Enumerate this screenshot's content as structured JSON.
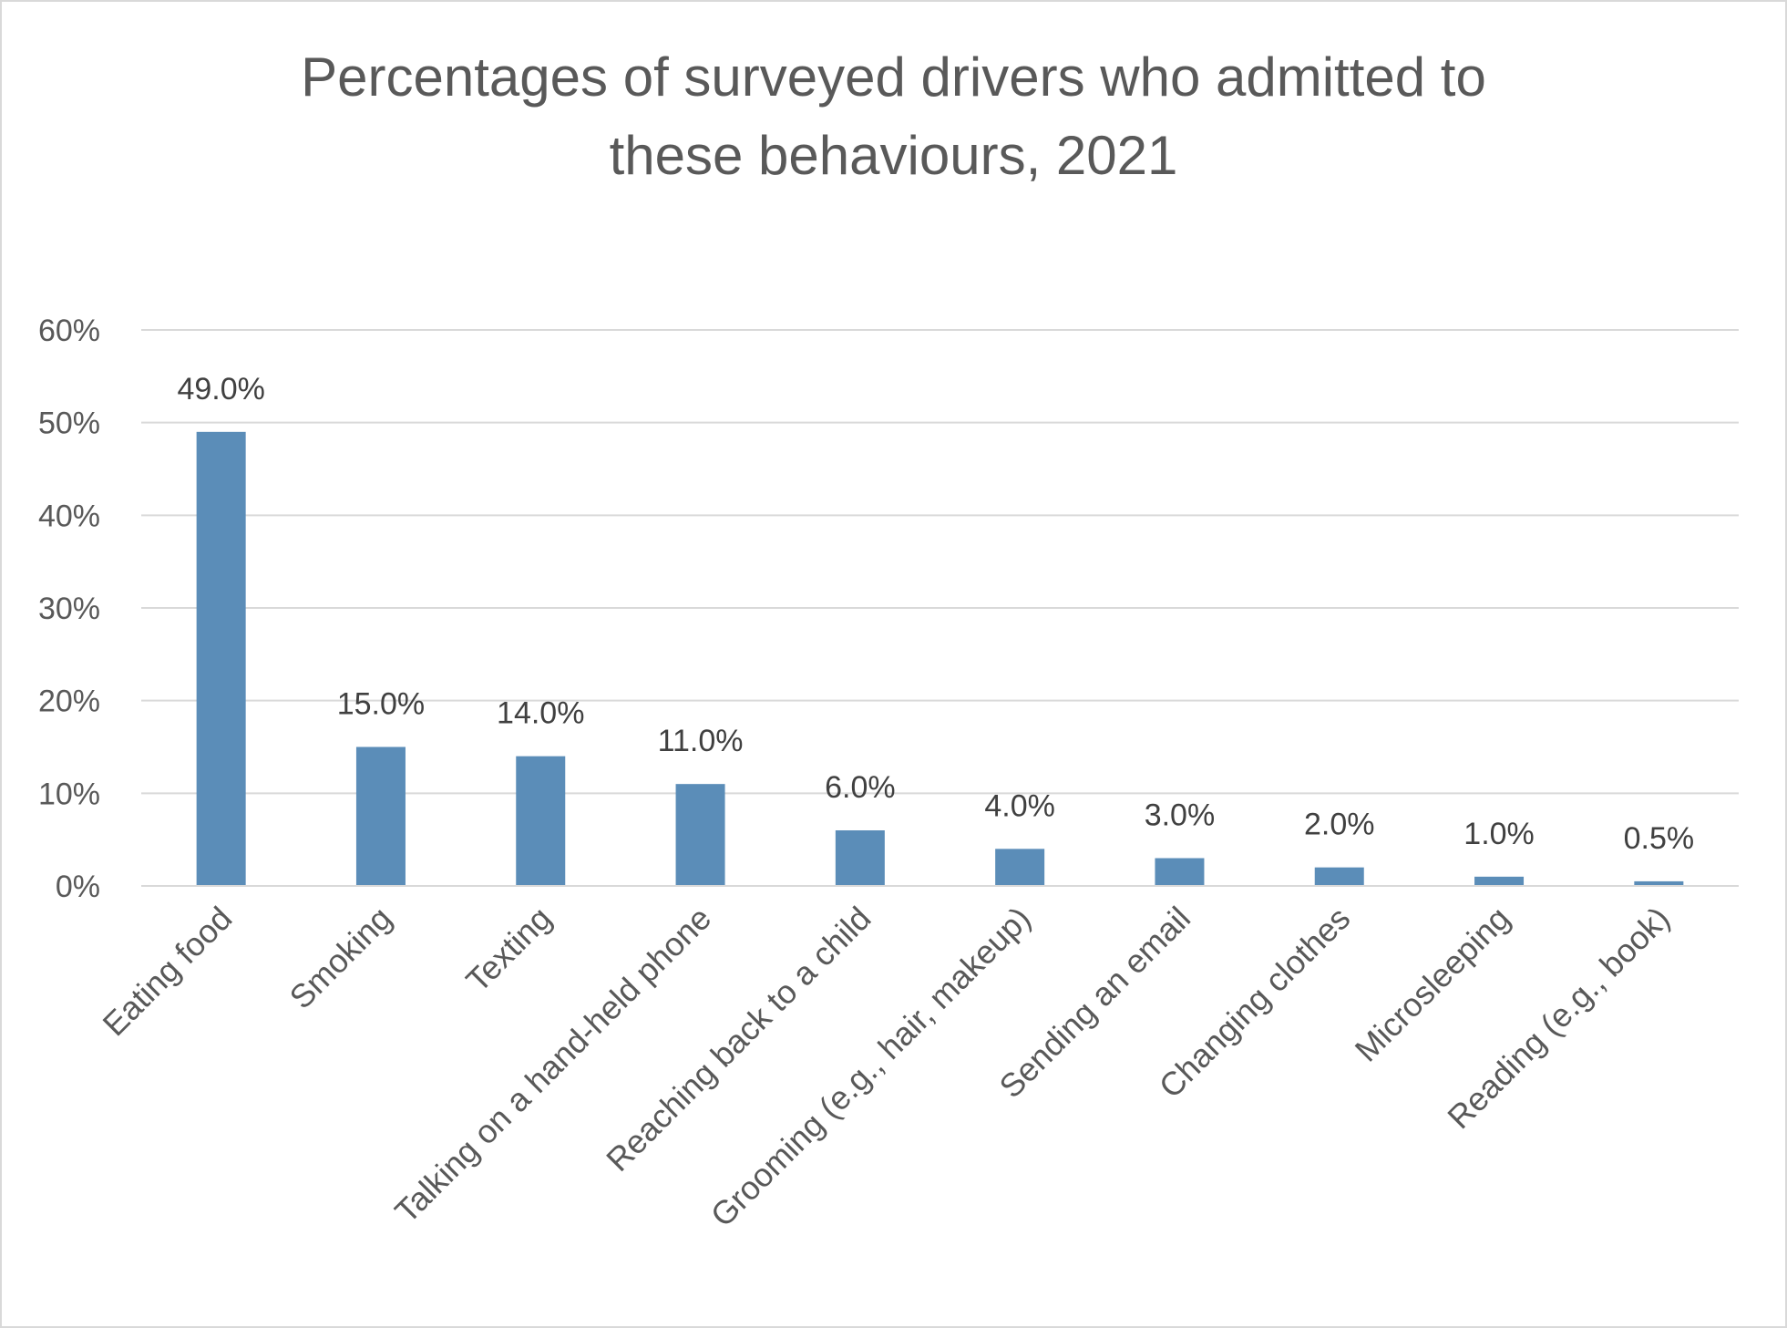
{
  "chart_data": {
    "type": "bar",
    "title": "Percentages of surveyed drivers who admitted to these behaviours, 2021",
    "title_lines": [
      "Percentages of surveyed drivers who admitted to",
      "these behaviours, 2021"
    ],
    "categories": [
      "Eating food",
      "Smoking",
      "Texting",
      "Talking on a hand-held phone",
      "Reaching back to a child",
      "Grooming (e.g., hair, makeup)",
      "Sending an email",
      "Changing clothes",
      "Microsleeping",
      "Reading (e.g., book)"
    ],
    "values": [
      49.0,
      15.0,
      14.0,
      11.0,
      6.0,
      4.0,
      3.0,
      2.0,
      1.0,
      0.5
    ],
    "data_labels": [
      "49.0%",
      "15.0%",
      "14.0%",
      "11.0%",
      "6.0%",
      "4.0%",
      "3.0%",
      "2.0%",
      "1.0%",
      "0.5%"
    ],
    "ylim": [
      0,
      60
    ],
    "yticks": [
      0,
      10,
      20,
      30,
      40,
      50,
      60
    ],
    "ytick_labels": [
      "0%",
      "10%",
      "20%",
      "30%",
      "40%",
      "50%",
      "60%"
    ],
    "xlabel": "",
    "ylabel": "",
    "grid": true,
    "legend": "none",
    "colors": {
      "bar": "#5b8db8",
      "grid": "#d9d9d9",
      "axis": "#d9d9d9",
      "title": "#595959"
    }
  }
}
